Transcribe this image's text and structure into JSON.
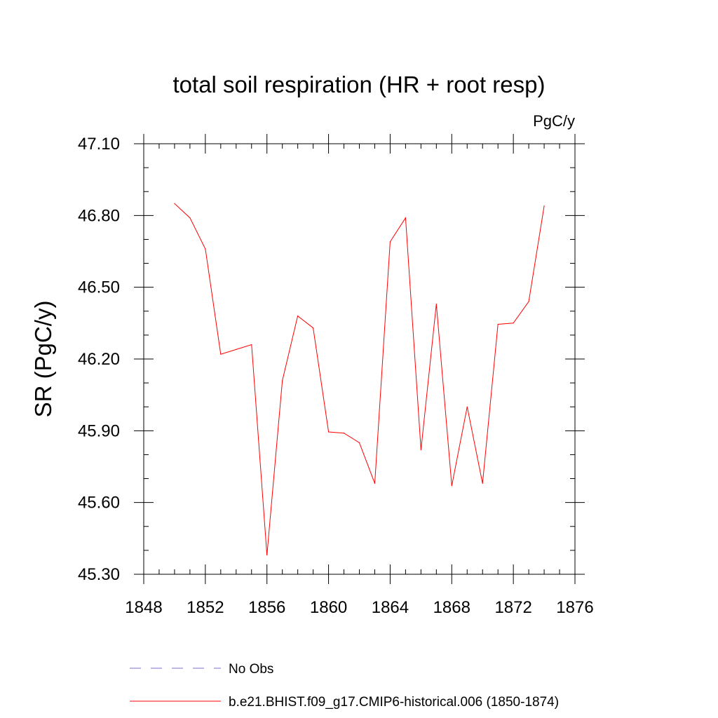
{
  "chart_data": {
    "type": "line",
    "title": "total soil respiration (HR + root resp)",
    "units": "PgC/y",
    "ylabel": "SR  (PgC/y)",
    "xlabel": "",
    "xlim": [
      1848,
      1876
    ],
    "ylim": [
      45.3,
      47.1
    ],
    "xticks": [
      1848,
      1852,
      1856,
      1860,
      1864,
      1868,
      1872,
      1876
    ],
    "xtick_labels": [
      "1848",
      "1852",
      "1856",
      "1860",
      "1864",
      "1868",
      "1872",
      "1876"
    ],
    "yticks": [
      45.3,
      45.6,
      45.9,
      46.2,
      46.5,
      46.8,
      47.1
    ],
    "ytick_labels": [
      "45.30",
      "45.60",
      "45.90",
      "46.20",
      "46.50",
      "46.80",
      "47.10"
    ],
    "x_minor_step": 1,
    "y_minor_step": 0.1,
    "series": [
      {
        "name": "b.e21.BHIST.f09_g17.CMIP6-historical.006 (1850-1874)",
        "color": "#ff0000",
        "dash": "solid",
        "x": [
          1850,
          1851,
          1852,
          1853,
          1854,
          1855,
          1856,
          1857,
          1858,
          1859,
          1860,
          1861,
          1862,
          1863,
          1864,
          1865,
          1866,
          1867,
          1868,
          1869,
          1870,
          1871,
          1872,
          1873,
          1874
        ],
        "values": [
          46.85,
          46.79,
          46.66,
          46.22,
          46.24,
          46.26,
          45.38,
          46.11,
          46.38,
          46.33,
          45.895,
          45.89,
          45.85,
          45.68,
          46.69,
          46.79,
          45.82,
          46.43,
          45.67,
          46.0,
          45.68,
          46.345,
          46.35,
          46.44,
          46.84
        ]
      }
    ],
    "legend": [
      {
        "label": "No Obs",
        "color": "#7a6fc8",
        "dash": "dashed"
      },
      {
        "label": "b.e21.BHIST.f09_g17.CMIP6-historical.006 (1850-1874)",
        "color": "#ff0000",
        "dash": "solid"
      }
    ]
  }
}
